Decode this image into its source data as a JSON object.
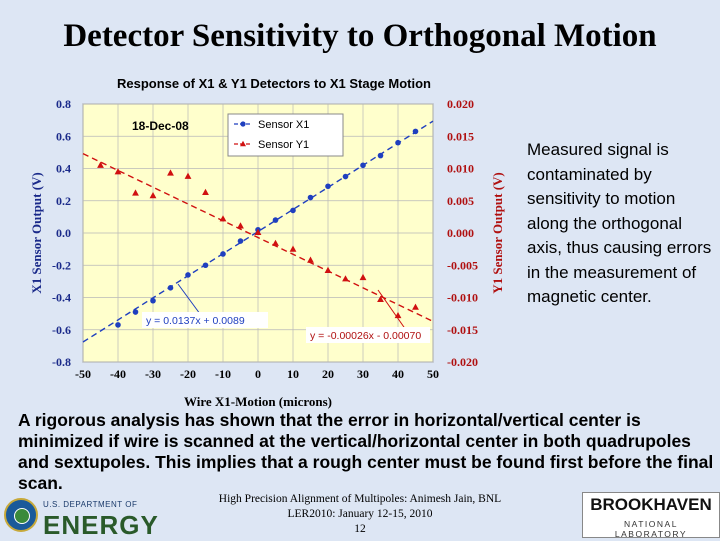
{
  "slide": {
    "title": "Detector Sensitivity to Orthogonal Motion",
    "side_note": "Measured signal is contaminated by sensitivity to motion along the orthogonal axis, thus causing errors in the measurement of magnetic center.",
    "body": "A rigorous analysis has shown that the error in horizontal/vertical center is minimized if wire is scanned at the vertical/horizontal center in both quadrupoles and sextupoles. This implies that a rough center must be found first before the final scan.",
    "footer": {
      "line1": "High Precision Alignment of Multipoles: Animesh Jain, BNL",
      "line2": "LER2010: January 12-15, 2010",
      "page": "12"
    },
    "logos": {
      "doe_small": "U.S. DEPARTMENT OF",
      "doe_big": "ENERGY",
      "bnl_name": "BROOKHAVEN",
      "bnl_lab": "NATIONAL LABORATORY"
    }
  },
  "chart_data": {
    "type": "scatter",
    "title": "Response of X1 & Y1 Detectors to X1 Stage Motion",
    "xlabel": "Wire X1-Motion (microns)",
    "ylabel": "X1 Sensor Output (V)",
    "y2label": "Y1 Sensor Output (V)",
    "xlim": [
      -50,
      50
    ],
    "ylim": [
      -0.8,
      0.8
    ],
    "y2lim": [
      -0.02,
      0.02
    ],
    "x_ticks": [
      "-50",
      "-40",
      "-30",
      "-20",
      "-10",
      "0",
      "10",
      "20",
      "30",
      "40",
      "50"
    ],
    "y_ticks": [
      "0.8",
      "0.6",
      "0.4",
      "0.2",
      "0.0",
      "-0.2",
      "-0.4",
      "-0.6",
      "-0.8"
    ],
    "y2_ticks": [
      "0.020",
      "0.015",
      "0.010",
      "0.005",
      "0.000",
      "-0.005",
      "-0.010",
      "-0.015",
      "-0.020"
    ],
    "date_label": "18-Dec-08",
    "grid": true,
    "legend_position": "top-center",
    "plot_background": "#ffffcc",
    "series": [
      {
        "name": "Sensor X1",
        "axis": "left",
        "color": "#1f3fbf",
        "marker": "circle",
        "x": [
          -40,
          -35,
          -30,
          -25,
          -20,
          -15,
          -10,
          -5,
          0,
          5,
          10,
          15,
          20,
          25,
          30,
          35,
          40,
          45
        ],
        "y": [
          -0.57,
          -0.49,
          -0.42,
          -0.34,
          -0.26,
          -0.2,
          -0.13,
          -0.05,
          0.02,
          0.08,
          0.14,
          0.22,
          0.29,
          0.35,
          0.42,
          0.48,
          0.56,
          0.63
        ],
        "fit_label": "y = 0.0137x + 0.0089",
        "fit_slope": 0.0137,
        "fit_intercept": 0.0089
      },
      {
        "name": "Sensor Y1",
        "axis": "right",
        "color": "#d01010",
        "marker": "triangle",
        "x": [
          -45,
          -40,
          -35,
          -30,
          -25,
          -20,
          -15,
          -10,
          -5,
          0,
          5,
          10,
          15,
          20,
          25,
          30,
          35,
          40,
          45
        ],
        "y": [
          0.0105,
          0.0095,
          0.0062,
          0.0058,
          0.0093,
          0.0088,
          0.0063,
          0.0022,
          0.0011,
          0.0001,
          -0.0016,
          -0.0025,
          -0.0042,
          -0.0058,
          -0.0071,
          -0.0069,
          -0.0103,
          -0.0128,
          -0.0115
        ],
        "fit_label": "y = -0.00026x - 0.00070",
        "fit_slope": -0.00026,
        "fit_intercept": -0.0007
      }
    ]
  }
}
